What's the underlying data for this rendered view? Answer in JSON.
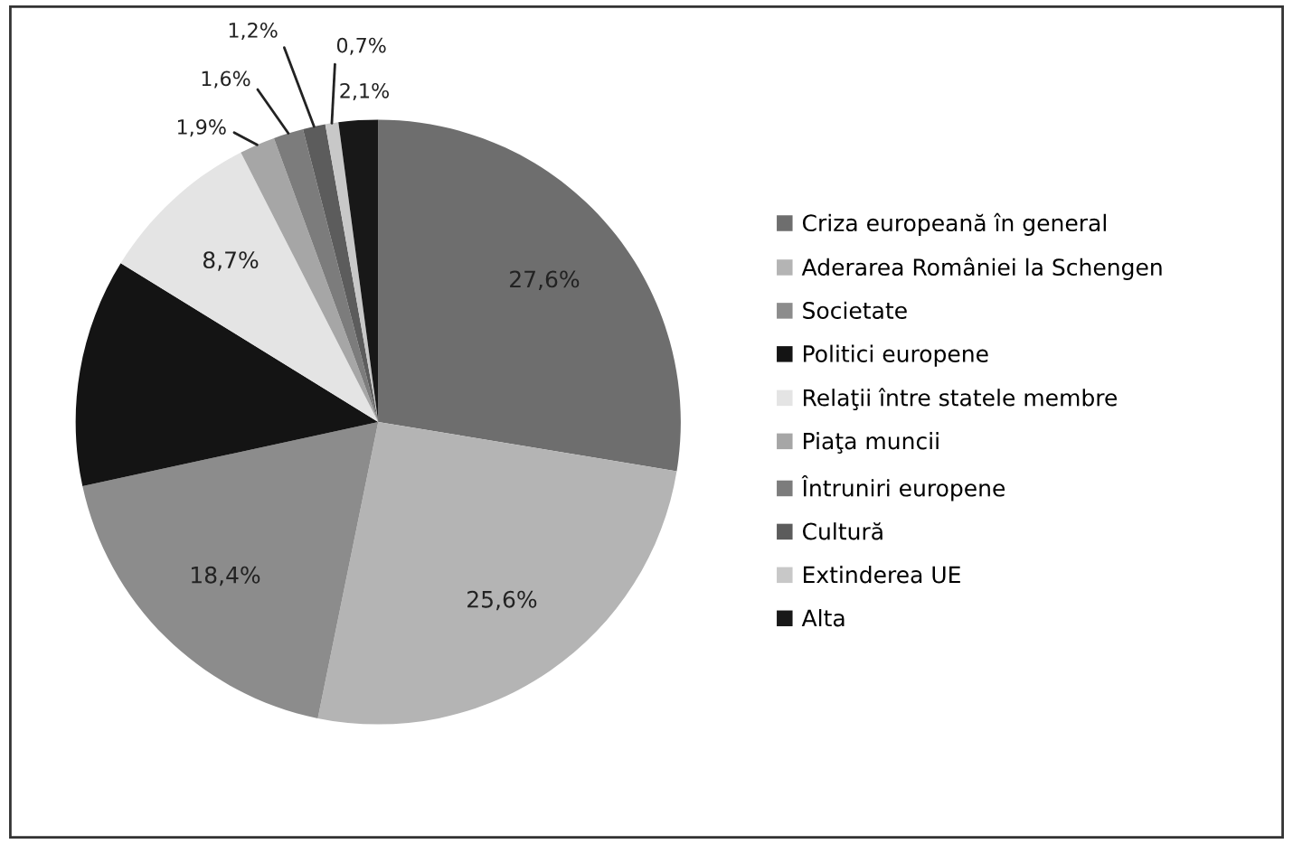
{
  "chart_data": {
    "type": "pie",
    "categories": [
      "Criza europeană în general",
      "Aderarea României la Schengen",
      "Societate",
      "Politici europene",
      "Relaţii între statele membre",
      "Piaţa muncii",
      "Întruniri europene",
      "Cultură",
      "Extinderea UE",
      "Alta"
    ],
    "values": [
      27.6,
      25.6,
      18.4,
      12.2,
      8.7,
      1.9,
      1.6,
      1.2,
      0.7,
      2.1
    ],
    "value_labels": [
      "27,6%",
      "25,6%",
      "18,4%",
      null,
      "8,7%",
      "1,9%",
      "1,6%",
      "1,2%",
      "0,7%",
      "2,1%"
    ],
    "colors": [
      "#6e6e6e",
      "#b4b4b4",
      "#8c8c8c",
      "#141414",
      "#e4e4e4",
      "#a6a6a6",
      "#7c7c7c",
      "#5c5c5c",
      "#c8c8c8",
      "#181818"
    ],
    "legend": "right"
  }
}
